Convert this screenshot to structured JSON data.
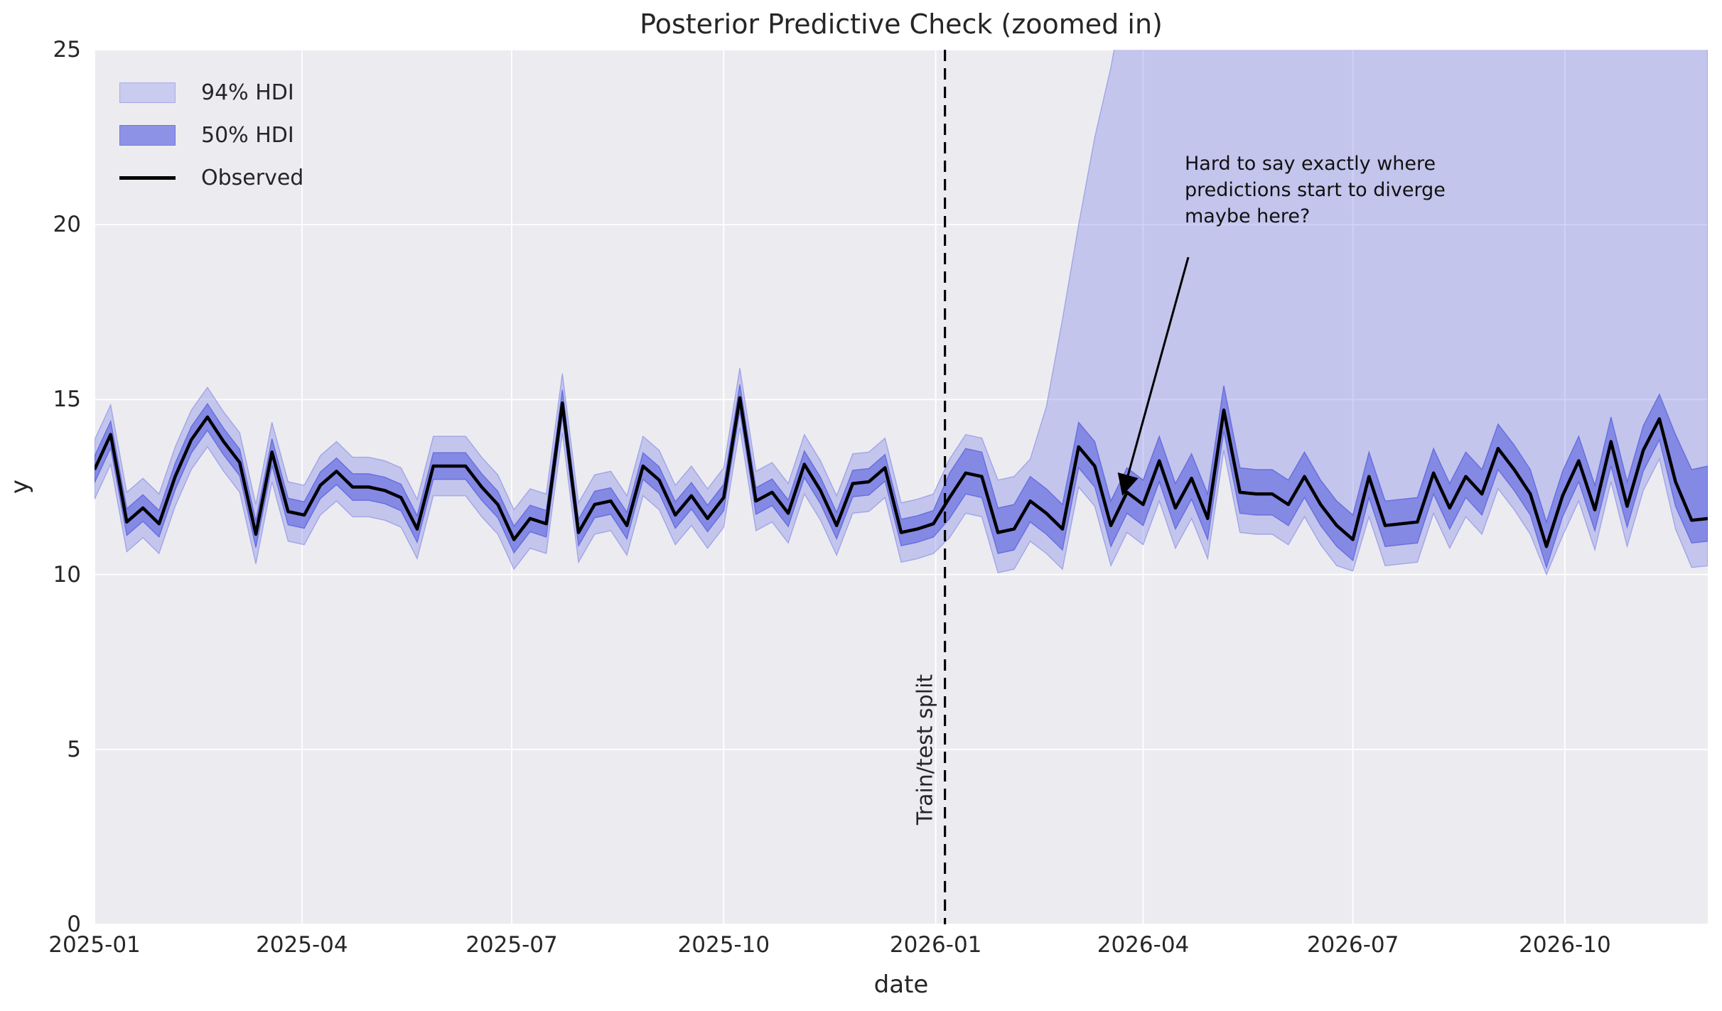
{
  "figure": {
    "title": "Posterior Predictive Check (zoomed in)",
    "xlabel": "date",
    "ylabel": "y"
  },
  "legend": {
    "items": [
      {
        "label": "94% HDI",
        "type": "patch",
        "fill": "#C9CBEF",
        "edge": "#A9ACE8"
      },
      {
        "label": "50% HDI",
        "type": "patch",
        "fill": "#8E92E6",
        "edge": "#7277DD"
      },
      {
        "label": "Observed",
        "type": "line",
        "color": "#000000"
      }
    ]
  },
  "annotation": {
    "text": "Hard to say exactly where\npredictions start to diverge\nmaybe here?"
  },
  "split_label": "Train/test split",
  "colors": {
    "figure_bg": "#FFFFFF",
    "axes_bg": "#ECECF0",
    "grid": "#FFFFFF",
    "hdi94_fill": "rgba(120,126,228,0.35)",
    "hdi94_edge": "rgba(120,126,228,0.55)",
    "hdi50_fill": "rgba(80,88,222,0.55)",
    "hdi50_edge": "rgba(86,93,220,0.75)",
    "observed": "#000000",
    "split_line": "#000000",
    "arrow": "#000000",
    "text": "#262626"
  },
  "chart_data": {
    "type": "line",
    "title": "Posterior Predictive Check (zoomed in)",
    "xlabel": "date",
    "ylabel": "y",
    "ylim": [
      0,
      25
    ],
    "y_ticks": [
      0,
      5,
      10,
      15,
      20,
      25
    ],
    "x_domain_days": [
      0,
      700
    ],
    "x_ticks": [
      {
        "label": "2025-01",
        "day": 0
      },
      {
        "label": "2025-04",
        "day": 90
      },
      {
        "label": "2025-07",
        "day": 181
      },
      {
        "label": "2025-10",
        "day": 273
      },
      {
        "label": "2026-01",
        "day": 365
      },
      {
        "label": "2026-04",
        "day": 455
      },
      {
        "label": "2026-07",
        "day": 546
      },
      {
        "label": "2026-10",
        "day": 638
      }
    ],
    "split": {
      "day": 369,
      "date": "2026-01-05",
      "label": "Train/test split"
    },
    "legend_entries": [
      "94% HDI",
      "50% HDI",
      "Observed"
    ],
    "grid": true,
    "legend_position": "upper left",
    "frequency": "weekly",
    "dates": [
      "2025-01-01",
      "2025-01-08",
      "2025-01-15",
      "2025-01-22",
      "2025-01-29",
      "2025-02-05",
      "2025-02-12",
      "2025-02-19",
      "2025-02-26",
      "2025-03-05",
      "2025-03-12",
      "2025-03-19",
      "2025-03-26",
      "2025-04-02",
      "2025-04-09",
      "2025-04-16",
      "2025-04-23",
      "2025-04-30",
      "2025-05-07",
      "2025-05-14",
      "2025-05-21",
      "2025-05-28",
      "2025-06-04",
      "2025-06-11",
      "2025-06-18",
      "2025-06-25",
      "2025-07-02",
      "2025-07-09",
      "2025-07-16",
      "2025-07-23",
      "2025-07-30",
      "2025-08-06",
      "2025-08-13",
      "2025-08-20",
      "2025-08-27",
      "2025-09-03",
      "2025-09-10",
      "2025-09-17",
      "2025-09-24",
      "2025-10-01",
      "2025-10-08",
      "2025-10-15",
      "2025-10-22",
      "2025-10-29",
      "2025-11-05",
      "2025-11-12",
      "2025-11-19",
      "2025-11-26",
      "2025-12-03",
      "2025-12-10",
      "2025-12-17",
      "2025-12-24",
      "2025-12-31",
      "2026-01-07",
      "2026-01-14",
      "2026-01-21",
      "2026-01-28",
      "2026-02-04",
      "2026-02-11",
      "2026-02-18",
      "2026-02-25",
      "2026-03-04",
      "2026-03-11",
      "2026-03-18",
      "2026-03-25",
      "2026-04-01",
      "2026-04-08",
      "2026-04-15",
      "2026-04-22",
      "2026-04-29",
      "2026-05-06",
      "2026-05-13",
      "2026-05-20",
      "2026-05-27",
      "2026-06-03",
      "2026-06-10",
      "2026-06-17",
      "2026-06-24",
      "2026-07-01",
      "2026-07-08",
      "2026-07-15",
      "2026-07-22",
      "2026-07-29",
      "2026-08-05",
      "2026-08-12",
      "2026-08-19",
      "2026-08-26",
      "2026-09-02",
      "2026-09-09",
      "2026-09-16",
      "2026-09-23",
      "2026-09-30",
      "2026-10-07",
      "2026-10-14",
      "2026-10-21",
      "2026-10-28",
      "2026-11-04",
      "2026-11-11",
      "2026-11-18",
      "2026-11-25",
      "2026-12-02"
    ],
    "observed": [
      13.0,
      14.0,
      11.5,
      11.9,
      11.45,
      12.8,
      13.85,
      14.5,
      13.8,
      13.2,
      11.15,
      13.5,
      11.8,
      11.7,
      12.55,
      12.95,
      12.5,
      12.5,
      12.4,
      12.2,
      11.3,
      13.1,
      13.1,
      13.1,
      12.5,
      12.0,
      11.0,
      11.6,
      11.45,
      14.9,
      11.2,
      12.0,
      12.1,
      11.4,
      13.1,
      12.7,
      11.7,
      12.25,
      11.6,
      12.2,
      15.05,
      12.1,
      12.35,
      11.75,
      13.15,
      12.4,
      11.4,
      12.6,
      12.65,
      13.05,
      11.2,
      11.3,
      11.45,
      12.2,
      12.9,
      12.8,
      11.2,
      11.3,
      12.1,
      11.75,
      11.3,
      13.65,
      13.1,
      11.4,
      12.35,
      12.0,
      13.25,
      11.9,
      12.75,
      11.6,
      14.7,
      12.35,
      12.3,
      12.3,
      12.0,
      12.8,
      12.0,
      11.4,
      11.0,
      12.8,
      11.4,
      11.45,
      11.5,
      12.9,
      11.9,
      12.8,
      12.3,
      13.6,
      13.0,
      12.3,
      10.8,
      12.25,
      13.25,
      11.85,
      13.8,
      11.95,
      13.55,
      14.45,
      12.65,
      11.55,
      11.6
    ],
    "hdi94_upper": [
      13.85,
      14.85,
      12.35,
      12.75,
      12.3,
      13.65,
      14.7,
      15.35,
      14.65,
      14.05,
      12.0,
      14.35,
      12.65,
      12.55,
      13.4,
      13.8,
      13.35,
      13.35,
      13.25,
      13.05,
      12.15,
      13.95,
      13.95,
      13.95,
      13.35,
      12.85,
      11.85,
      12.45,
      12.3,
      15.75,
      12.05,
      12.85,
      12.95,
      12.25,
      13.95,
      13.55,
      12.55,
      13.1,
      12.45,
      13.05,
      15.9,
      12.95,
      13.2,
      12.6,
      14.0,
      13.25,
      12.25,
      13.45,
      13.5,
      13.9,
      12.05,
      12.15,
      12.3,
      13.3,
      14.0,
      13.9,
      12.7,
      12.8,
      13.3,
      14.8,
      17.3,
      20.0,
      22.5,
      24.5,
      27,
      27,
      27,
      27,
      27,
      27,
      27,
      27,
      27,
      27,
      27,
      27,
      27,
      27,
      27,
      27,
      27,
      27,
      27,
      27,
      27,
      27,
      27,
      27,
      27,
      27,
      27,
      27,
      27,
      27,
      27,
      27,
      27,
      27,
      27,
      27,
      27
    ],
    "hdi94_lower": [
      12.15,
      13.15,
      10.65,
      11.05,
      10.6,
      11.95,
      13.0,
      13.65,
      12.95,
      12.35,
      10.3,
      12.65,
      10.95,
      10.85,
      11.7,
      12.1,
      11.65,
      11.65,
      11.55,
      11.35,
      10.45,
      12.25,
      12.25,
      12.25,
      11.65,
      11.15,
      10.15,
      10.75,
      10.6,
      14.05,
      10.35,
      11.15,
      11.25,
      10.55,
      12.25,
      11.85,
      10.85,
      11.4,
      10.75,
      11.35,
      14.2,
      11.25,
      11.5,
      10.9,
      12.3,
      11.55,
      10.55,
      11.75,
      11.8,
      12.2,
      10.35,
      10.45,
      10.6,
      11.05,
      11.75,
      11.65,
      10.05,
      10.15,
      10.95,
      10.6,
      10.15,
      12.5,
      11.95,
      10.25,
      11.2,
      10.85,
      12.1,
      10.75,
      11.6,
      10.45,
      13.55,
      11.2,
      11.15,
      11.15,
      10.85,
      11.65,
      10.85,
      10.25,
      10.1,
      11.65,
      10.25,
      10.3,
      10.35,
      11.75,
      10.75,
      11.65,
      11.15,
      12.45,
      11.85,
      11.15,
      10.0,
      11.1,
      12.1,
      10.7,
      12.65,
      10.8,
      12.4,
      13.3,
      11.3,
      10.2,
      10.25
    ],
    "hdi50_upper": [
      13.38,
      14.38,
      11.88,
      12.28,
      11.83,
      13.18,
      14.23,
      14.88,
      14.18,
      13.58,
      11.53,
      13.88,
      12.18,
      12.08,
      12.93,
      13.33,
      12.88,
      12.88,
      12.78,
      12.58,
      11.68,
      13.48,
      13.48,
      13.48,
      12.88,
      12.38,
      11.38,
      11.98,
      11.83,
      15.28,
      11.58,
      12.38,
      12.48,
      11.78,
      13.48,
      13.08,
      12.08,
      12.63,
      11.98,
      12.58,
      15.43,
      12.48,
      12.73,
      12.13,
      13.53,
      12.78,
      11.78,
      12.98,
      13.03,
      13.43,
      11.58,
      11.68,
      11.83,
      12.9,
      13.6,
      13.5,
      11.9,
      12.0,
      12.8,
      12.45,
      12.0,
      14.35,
      13.8,
      12.1,
      13.05,
      12.7,
      13.95,
      12.6,
      13.45,
      12.3,
      15.4,
      13.05,
      13.0,
      13.0,
      12.7,
      13.5,
      12.7,
      12.1,
      11.7,
      13.5,
      12.1,
      12.15,
      12.2,
      13.6,
      12.6,
      13.5,
      13.0,
      14.3,
      13.7,
      13.0,
      11.5,
      12.95,
      13.95,
      12.55,
      14.5,
      12.65,
      14.25,
      15.15,
      14.0,
      13.0,
      13.1
    ],
    "hdi50_lower": [
      12.62,
      13.62,
      11.12,
      11.52,
      11.07,
      12.42,
      13.47,
      14.12,
      13.42,
      12.82,
      10.77,
      13.12,
      11.42,
      11.32,
      12.17,
      12.57,
      12.12,
      12.12,
      12.02,
      11.82,
      10.92,
      12.72,
      12.72,
      12.72,
      12.12,
      11.62,
      10.62,
      11.22,
      11.07,
      14.52,
      10.82,
      11.62,
      11.72,
      11.02,
      12.72,
      12.32,
      11.32,
      11.87,
      11.22,
      11.82,
      14.67,
      11.72,
      11.97,
      11.37,
      12.77,
      12.02,
      11.02,
      12.22,
      12.27,
      12.67,
      10.82,
      10.92,
      11.07,
      11.6,
      12.3,
      12.2,
      10.6,
      10.7,
      11.5,
      11.15,
      10.7,
      13.05,
      12.5,
      10.8,
      11.75,
      11.4,
      12.65,
      11.3,
      12.15,
      11.0,
      14.1,
      11.75,
      11.7,
      11.7,
      11.4,
      12.2,
      11.4,
      10.8,
      10.4,
      12.2,
      10.8,
      10.85,
      10.9,
      12.3,
      11.3,
      12.2,
      11.7,
      13.0,
      12.4,
      11.7,
      10.2,
      11.65,
      12.65,
      11.25,
      13.1,
      11.35,
      12.95,
      13.85,
      11.95,
      10.9,
      10.95
    ]
  }
}
